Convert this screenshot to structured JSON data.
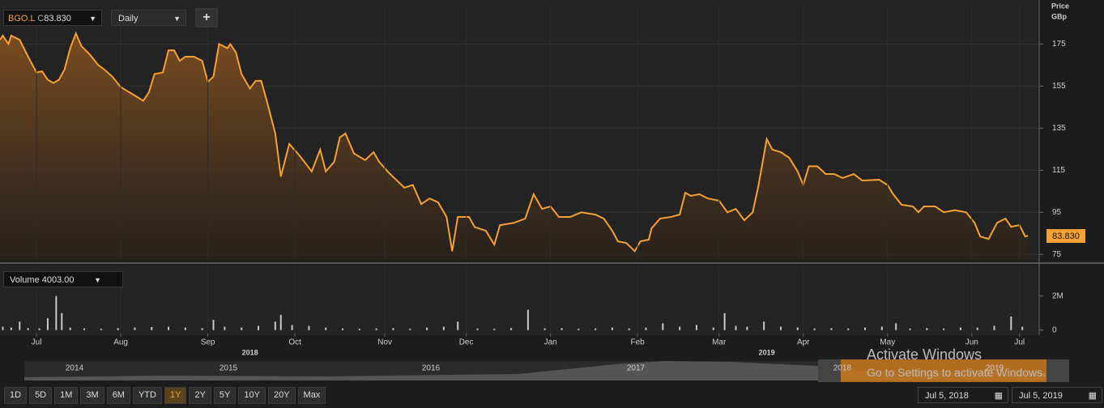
{
  "ui": {
    "symbol": "BGO.L",
    "close_prefix": "C",
    "close_value": "83.830",
    "interval": "Daily",
    "add_button": "+",
    "axis_title": "Price",
    "axis_unit": "GBp",
    "volume_label": "Volume",
    "volume_value": "4003.00",
    "last_price_label": "83.830",
    "navigator_years": [
      "2014",
      "2015",
      "2016",
      "2017",
      "2018",
      "2019"
    ],
    "watermark_title": "Activate Windows",
    "watermark_text": "Go to Settings to activate Windows.",
    "range_buttons": [
      "1D",
      "5D",
      "1M",
      "3M",
      "6M",
      "YTD",
      "1Y",
      "2Y",
      "5Y",
      "10Y",
      "20Y",
      "Max"
    ],
    "active_range": "1Y",
    "start_date": "Jul 5, 2018",
    "end_date": "Jul 5, 2019"
  },
  "chart_data": [
    {
      "type": "area",
      "line_color": "#f7a034",
      "xlim": [
        0,
        370
      ],
      "ylim": [
        72,
        194
      ],
      "yticks": [
        75,
        95,
        115,
        135,
        155,
        175
      ],
      "grid": true,
      "x": [
        0,
        1,
        3,
        4,
        7,
        10,
        13,
        15,
        17,
        19,
        21,
        23,
        25,
        27,
        29,
        32,
        35,
        37,
        40,
        43,
        48,
        51,
        53,
        55,
        58,
        60,
        62,
        64,
        66,
        69,
        72,
        74,
        76,
        78,
        81,
        82,
        84,
        86,
        89,
        91,
        93,
        95,
        98,
        100,
        103,
        106,
        109,
        111,
        114,
        116,
        119,
        121,
        123,
        126,
        130,
        133,
        135,
        138,
        141,
        144,
        147,
        150,
        153,
        156,
        159,
        161,
        163,
        167,
        169,
        173,
        176,
        178,
        183,
        187,
        190,
        193,
        196,
        199,
        203,
        207,
        212,
        215,
        218,
        220,
        223,
        226,
        228,
        231,
        232,
        235,
        239,
        242,
        244,
        246,
        249,
        252,
        256,
        259,
        262,
        265,
        268,
        270,
        273,
        275,
        278,
        281,
        284,
        286,
        288,
        291,
        294,
        297,
        300,
        304,
        307,
        313,
        316,
        318,
        321,
        325,
        327,
        329,
        333,
        336,
        340,
        344,
        347,
        349,
        352,
        355,
        358,
        360,
        363,
        365,
        366
      ],
      "series": [
        {
          "name": "BGO.L",
          "color": "#f7a034",
          "values": [
            177,
            179,
            175,
            179,
            177,
            169,
            161.5,
            162,
            158,
            156.5,
            158,
            163,
            173,
            180,
            174,
            170,
            165,
            163,
            159.5,
            154.5,
            150.5,
            148,
            152,
            160.7,
            161.5,
            172,
            172,
            167,
            169,
            169,
            167,
            157,
            159.5,
            175,
            173,
            175,
            171,
            160.7,
            153.8,
            157.5,
            157.5,
            148,
            132.5,
            112,
            127.5,
            123,
            117.9,
            114.4,
            124.8,
            114.4,
            119,
            130.6,
            132.5,
            123,
            119.8,
            123.6,
            119,
            114.4,
            110.5,
            106.7,
            108,
            98.9,
            101.6,
            99.7,
            92.8,
            76.5,
            92.8,
            92.8,
            88,
            86.2,
            79.6,
            88.9,
            90,
            92,
            103.6,
            96.6,
            97.8,
            92.8,
            92.8,
            95,
            93.9,
            92,
            86.2,
            81.2,
            80.4,
            76.5,
            81.2,
            82,
            87.4,
            92,
            92.8,
            93.9,
            104.3,
            102.8,
            103.6,
            101.6,
            100.5,
            95,
            96.6,
            91.2,
            95,
            107.4,
            129.8,
            124.8,
            123.6,
            120.9,
            114.4,
            108,
            116.9,
            116.9,
            113.2,
            113.2,
            111.3,
            113.2,
            110.1,
            110.5,
            108,
            103.6,
            98.6,
            97.8,
            95,
            97.8,
            97.8,
            95,
            96,
            95,
            90,
            83.5,
            82.3,
            90,
            92,
            88.1,
            88.9,
            83.5,
            83.83
          ]
        }
      ]
    },
    {
      "type": "bar",
      "color": "#c8c8c8",
      "xlim": [
        0,
        370
      ],
      "ylim": [
        -200000,
        3700000
      ],
      "yticks": [
        0,
        {
          "value": 2000000,
          "label": "2M"
        }
      ],
      "xticks": [
        {
          "value": 13,
          "label": "Jul"
        },
        {
          "value": 43,
          "label": "Aug"
        },
        {
          "value": 74,
          "label": "Sep"
        },
        {
          "value": 105,
          "label": "Oct"
        },
        {
          "value": 137,
          "label": "Nov"
        },
        {
          "value": 166,
          "label": "Dec"
        },
        {
          "value": 196,
          "label": "Jan"
        },
        {
          "value": 227,
          "label": "Feb"
        },
        {
          "value": 256,
          "label": "Mar"
        },
        {
          "value": 286,
          "label": "Apr"
        },
        {
          "value": 316,
          "label": "May"
        },
        {
          "value": 346,
          "label": "Jun"
        },
        {
          "value": 363,
          "label": "Jul"
        }
      ],
      "year_ticks": [
        {
          "value": 89,
          "label": "2018"
        },
        {
          "value": 273,
          "label": "2019"
        }
      ],
      "x": [
        1,
        4,
        7,
        10,
        14,
        17,
        20,
        22,
        25,
        30,
        36,
        42,
        48,
        54,
        60,
        66,
        72,
        76,
        80,
        86,
        92,
        98,
        100,
        104,
        110,
        116,
        122,
        128,
        134,
        140,
        146,
        152,
        158,
        163,
        170,
        176,
        182,
        188,
        194,
        200,
        206,
        212,
        218,
        224,
        230,
        236,
        242,
        248,
        254,
        258,
        262,
        266,
        272,
        278,
        284,
        290,
        296,
        302,
        308,
        314,
        319,
        324,
        330,
        336,
        342,
        348,
        354,
        360,
        364
      ],
      "values": [
        200000,
        150000,
        500000,
        120000,
        100000,
        700000,
        2000000,
        1000000,
        150000,
        100000,
        80000,
        120000,
        150000,
        180000,
        200000,
        150000,
        120000,
        600000,
        200000,
        150000,
        250000,
        500000,
        900000,
        300000,
        250000,
        150000,
        100000,
        80000,
        100000,
        120000,
        80000,
        150000,
        200000,
        500000,
        100000,
        80000,
        120000,
        1200000,
        100000,
        120000,
        80000,
        100000,
        150000,
        100000,
        150000,
        400000,
        200000,
        300000,
        150000,
        1000000,
        250000,
        200000,
        500000,
        200000,
        150000,
        100000,
        120000,
        100000,
        150000,
        200000,
        400000,
        100000,
        120000,
        100000,
        150000,
        150000,
        250000,
        800000,
        200000
      ]
    }
  ]
}
